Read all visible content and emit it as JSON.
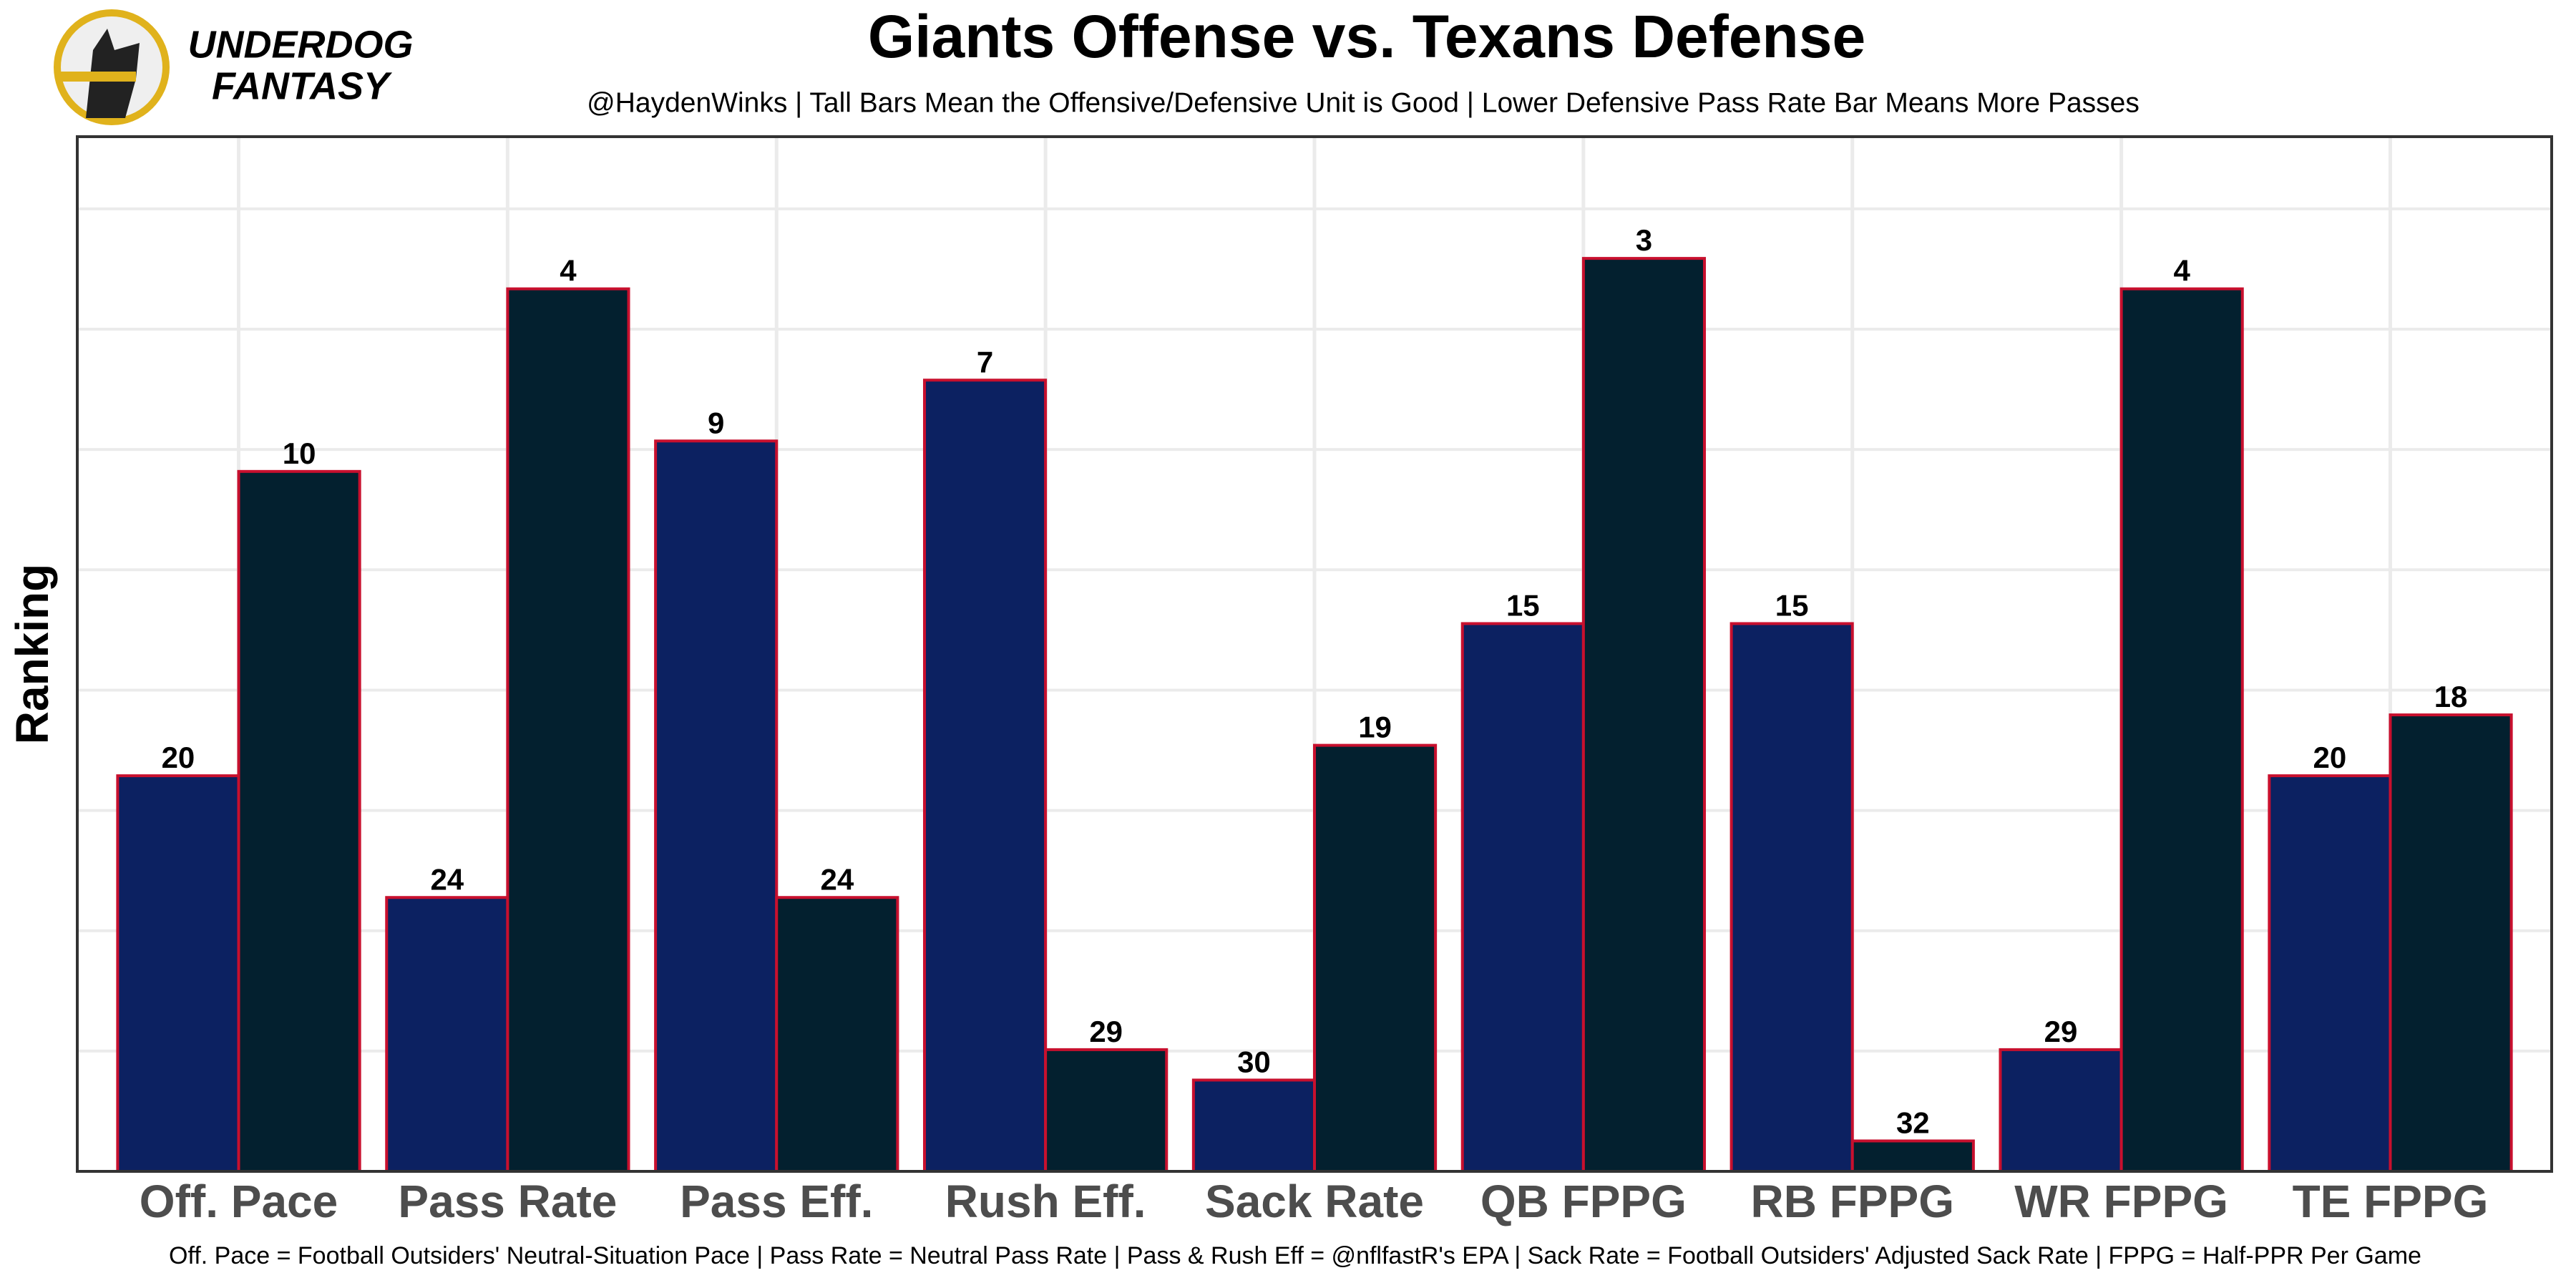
{
  "chart_data": {
    "type": "bar",
    "title": "Giants Offense vs. Texans Defense",
    "subtitle": "@HaydenWinks | Tall Bars Mean the Offensive/Defensive Unit is Good | Lower Defensive Pass Rate Bar Means More Passes",
    "caption": "Off. Pace = Football Outsiders' Neutral-Situation Pace | Pass Rate = Neutral Pass Rate | Pass & Rush Eff = @nflfastR's EPA | Sack Rate = Football Outsiders' Adjusted Sack Rate | FPPG = Half-PPR Per Game",
    "brand": [
      "UNDERDOG",
      "FANTASY"
    ],
    "ylabel": "Ranking",
    "categories": [
      "Off. Pace",
      "Pass Rate",
      "Pass Eff.",
      "Rush Eff.",
      "Sack Rate",
      "QB FPPG",
      "RB FPPG",
      "WR FPPG",
      "TE FPPG"
    ],
    "series": [
      {
        "color": "#0c2161",
        "values": [
          20,
          24,
          9,
          7,
          30,
          15,
          15,
          29,
          20
        ]
      },
      {
        "color": "#03202f",
        "values": [
          10,
          4,
          24,
          29,
          19,
          3,
          32,
          4,
          18
        ]
      }
    ],
    "bar_edge_color": "#c8102e",
    "ylim": [
      33,
      -1
    ],
    "grid": true
  }
}
